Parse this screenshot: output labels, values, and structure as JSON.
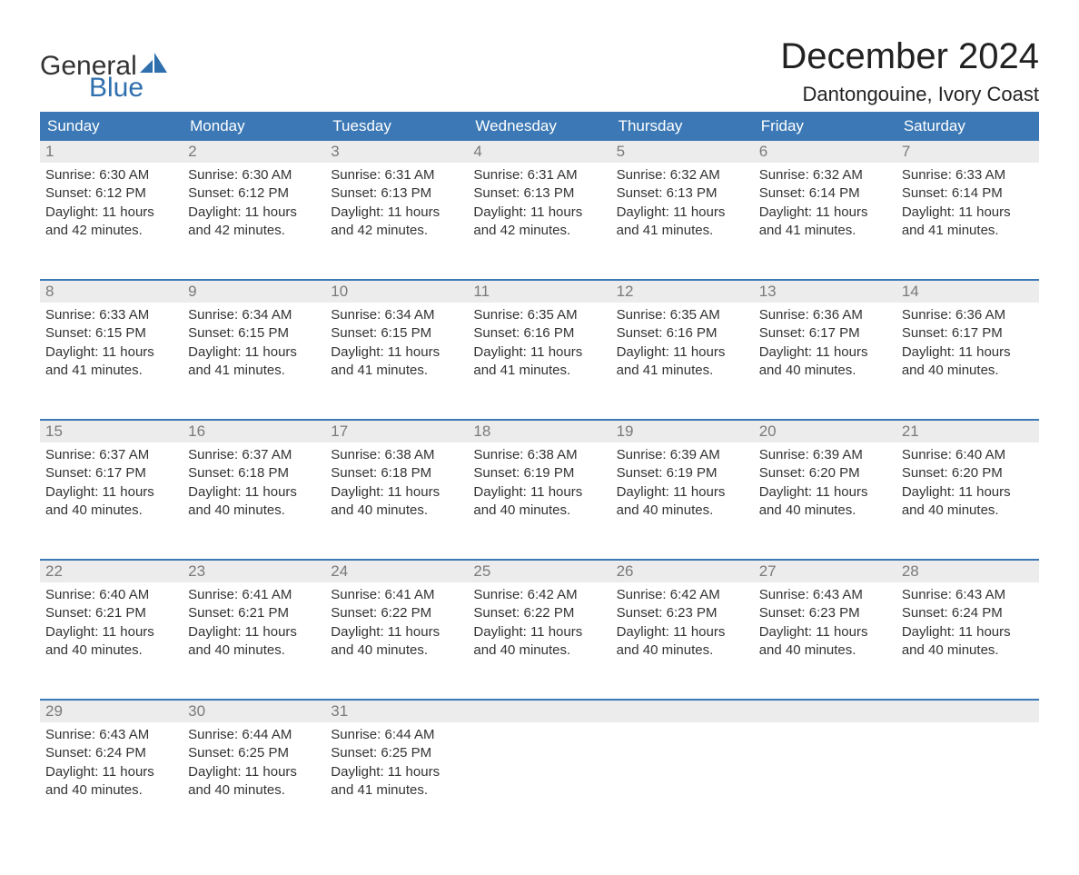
{
  "logo": {
    "text1": "General",
    "text2": "Blue",
    "sail_color": "#2f6fae"
  },
  "title": "December 2024",
  "subtitle": "Dantongouine, Ivory Coast",
  "colors": {
    "header_bg": "#3b78b5",
    "header_fg": "#ffffff",
    "daynum_bg": "#ececec",
    "daynum_fg": "#7a7a7a",
    "text": "#333333",
    "rule": "#3b78b5"
  },
  "weekdays": [
    "Sunday",
    "Monday",
    "Tuesday",
    "Wednesday",
    "Thursday",
    "Friday",
    "Saturday"
  ],
  "weeks": [
    [
      {
        "n": "1",
        "sunrise": "Sunrise: 6:30 AM",
        "sunset": "Sunset: 6:12 PM",
        "day1": "Daylight: 11 hours",
        "day2": "and 42 minutes."
      },
      {
        "n": "2",
        "sunrise": "Sunrise: 6:30 AM",
        "sunset": "Sunset: 6:12 PM",
        "day1": "Daylight: 11 hours",
        "day2": "and 42 minutes."
      },
      {
        "n": "3",
        "sunrise": "Sunrise: 6:31 AM",
        "sunset": "Sunset: 6:13 PM",
        "day1": "Daylight: 11 hours",
        "day2": "and 42 minutes."
      },
      {
        "n": "4",
        "sunrise": "Sunrise: 6:31 AM",
        "sunset": "Sunset: 6:13 PM",
        "day1": "Daylight: 11 hours",
        "day2": "and 42 minutes."
      },
      {
        "n": "5",
        "sunrise": "Sunrise: 6:32 AM",
        "sunset": "Sunset: 6:13 PM",
        "day1": "Daylight: 11 hours",
        "day2": "and 41 minutes."
      },
      {
        "n": "6",
        "sunrise": "Sunrise: 6:32 AM",
        "sunset": "Sunset: 6:14 PM",
        "day1": "Daylight: 11 hours",
        "day2": "and 41 minutes."
      },
      {
        "n": "7",
        "sunrise": "Sunrise: 6:33 AM",
        "sunset": "Sunset: 6:14 PM",
        "day1": "Daylight: 11 hours",
        "day2": "and 41 minutes."
      }
    ],
    [
      {
        "n": "8",
        "sunrise": "Sunrise: 6:33 AM",
        "sunset": "Sunset: 6:15 PM",
        "day1": "Daylight: 11 hours",
        "day2": "and 41 minutes."
      },
      {
        "n": "9",
        "sunrise": "Sunrise: 6:34 AM",
        "sunset": "Sunset: 6:15 PM",
        "day1": "Daylight: 11 hours",
        "day2": "and 41 minutes."
      },
      {
        "n": "10",
        "sunrise": "Sunrise: 6:34 AM",
        "sunset": "Sunset: 6:15 PM",
        "day1": "Daylight: 11 hours",
        "day2": "and 41 minutes."
      },
      {
        "n": "11",
        "sunrise": "Sunrise: 6:35 AM",
        "sunset": "Sunset: 6:16 PM",
        "day1": "Daylight: 11 hours",
        "day2": "and 41 minutes."
      },
      {
        "n": "12",
        "sunrise": "Sunrise: 6:35 AM",
        "sunset": "Sunset: 6:16 PM",
        "day1": "Daylight: 11 hours",
        "day2": "and 41 minutes."
      },
      {
        "n": "13",
        "sunrise": "Sunrise: 6:36 AM",
        "sunset": "Sunset: 6:17 PM",
        "day1": "Daylight: 11 hours",
        "day2": "and 40 minutes."
      },
      {
        "n": "14",
        "sunrise": "Sunrise: 6:36 AM",
        "sunset": "Sunset: 6:17 PM",
        "day1": "Daylight: 11 hours",
        "day2": "and 40 minutes."
      }
    ],
    [
      {
        "n": "15",
        "sunrise": "Sunrise: 6:37 AM",
        "sunset": "Sunset: 6:17 PM",
        "day1": "Daylight: 11 hours",
        "day2": "and 40 minutes."
      },
      {
        "n": "16",
        "sunrise": "Sunrise: 6:37 AM",
        "sunset": "Sunset: 6:18 PM",
        "day1": "Daylight: 11 hours",
        "day2": "and 40 minutes."
      },
      {
        "n": "17",
        "sunrise": "Sunrise: 6:38 AM",
        "sunset": "Sunset: 6:18 PM",
        "day1": "Daylight: 11 hours",
        "day2": "and 40 minutes."
      },
      {
        "n": "18",
        "sunrise": "Sunrise: 6:38 AM",
        "sunset": "Sunset: 6:19 PM",
        "day1": "Daylight: 11 hours",
        "day2": "and 40 minutes."
      },
      {
        "n": "19",
        "sunrise": "Sunrise: 6:39 AM",
        "sunset": "Sunset: 6:19 PM",
        "day1": "Daylight: 11 hours",
        "day2": "and 40 minutes."
      },
      {
        "n": "20",
        "sunrise": "Sunrise: 6:39 AM",
        "sunset": "Sunset: 6:20 PM",
        "day1": "Daylight: 11 hours",
        "day2": "and 40 minutes."
      },
      {
        "n": "21",
        "sunrise": "Sunrise: 6:40 AM",
        "sunset": "Sunset: 6:20 PM",
        "day1": "Daylight: 11 hours",
        "day2": "and 40 minutes."
      }
    ],
    [
      {
        "n": "22",
        "sunrise": "Sunrise: 6:40 AM",
        "sunset": "Sunset: 6:21 PM",
        "day1": "Daylight: 11 hours",
        "day2": "and 40 minutes."
      },
      {
        "n": "23",
        "sunrise": "Sunrise: 6:41 AM",
        "sunset": "Sunset: 6:21 PM",
        "day1": "Daylight: 11 hours",
        "day2": "and 40 minutes."
      },
      {
        "n": "24",
        "sunrise": "Sunrise: 6:41 AM",
        "sunset": "Sunset: 6:22 PM",
        "day1": "Daylight: 11 hours",
        "day2": "and 40 minutes."
      },
      {
        "n": "25",
        "sunrise": "Sunrise: 6:42 AM",
        "sunset": "Sunset: 6:22 PM",
        "day1": "Daylight: 11 hours",
        "day2": "and 40 minutes."
      },
      {
        "n": "26",
        "sunrise": "Sunrise: 6:42 AM",
        "sunset": "Sunset: 6:23 PM",
        "day1": "Daylight: 11 hours",
        "day2": "and 40 minutes."
      },
      {
        "n": "27",
        "sunrise": "Sunrise: 6:43 AM",
        "sunset": "Sunset: 6:23 PM",
        "day1": "Daylight: 11 hours",
        "day2": "and 40 minutes."
      },
      {
        "n": "28",
        "sunrise": "Sunrise: 6:43 AM",
        "sunset": "Sunset: 6:24 PM",
        "day1": "Daylight: 11 hours",
        "day2": "and 40 minutes."
      }
    ],
    [
      {
        "n": "29",
        "sunrise": "Sunrise: 6:43 AM",
        "sunset": "Sunset: 6:24 PM",
        "day1": "Daylight: 11 hours",
        "day2": "and 40 minutes."
      },
      {
        "n": "30",
        "sunrise": "Sunrise: 6:44 AM",
        "sunset": "Sunset: 6:25 PM",
        "day1": "Daylight: 11 hours",
        "day2": "and 40 minutes."
      },
      {
        "n": "31",
        "sunrise": "Sunrise: 6:44 AM",
        "sunset": "Sunset: 6:25 PM",
        "day1": "Daylight: 11 hours",
        "day2": "and 41 minutes."
      },
      null,
      null,
      null,
      null
    ]
  ]
}
